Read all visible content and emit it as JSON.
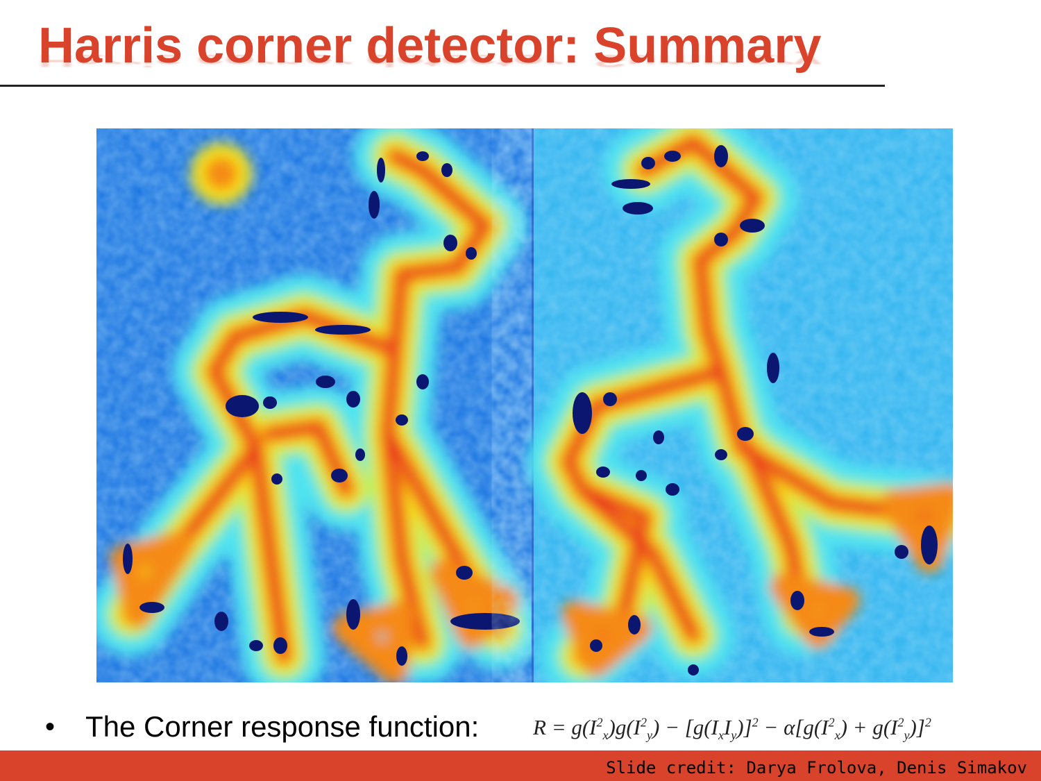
{
  "slide": {
    "title": "Harris corner detector: Summary",
    "bullet_symbol": "•",
    "bullet_text": "The Corner response function:",
    "formula": {
      "R": "R",
      "eq": " = g(I",
      "x": "x",
      "sq": "2",
      "y": "y"
    },
    "credit": "Slide credit: Darya Frolova, Denis Simakov"
  },
  "colors": {
    "title": "#d9432b",
    "footer": "#d9432b",
    "heatmap_low": "#1e6fe0",
    "heatmap_bg": "#2aa7ee",
    "heatmap_mid": "#f4e21a",
    "heatmap_high": "#e8231b",
    "minima": "#0a1670"
  },
  "figure": {
    "type": "corner-response-heatmap",
    "panels": [
      "left-giraffe-response",
      "right-giraffe-response"
    ]
  }
}
